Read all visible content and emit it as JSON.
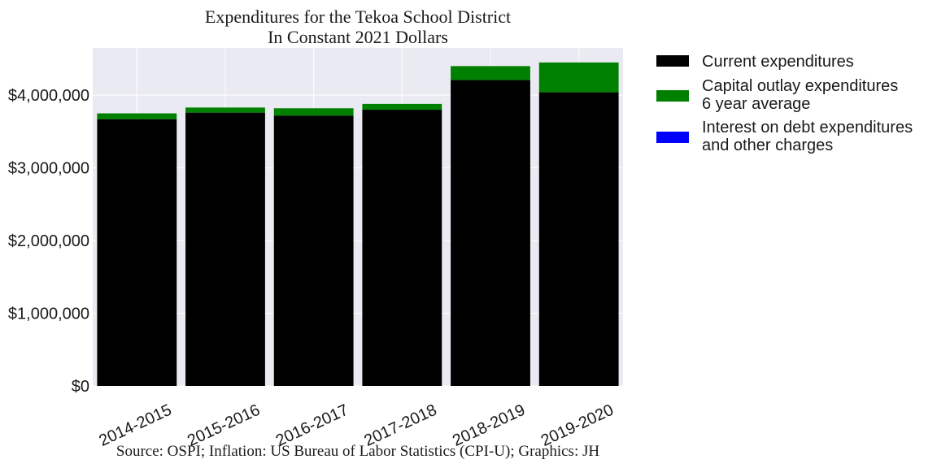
{
  "chart_data": {
    "type": "bar",
    "stacked": true,
    "title": "Expenditures for the Tekoa School District",
    "subtitle": "In Constant 2021 Dollars",
    "xlabel": "",
    "ylabel": "",
    "categories": [
      "2014-2015",
      "2015-2016",
      "2016-2017",
      "2017-2018",
      "2018-2019",
      "2019-2020"
    ],
    "series": [
      {
        "name": "Current expenditures",
        "color": "#000000",
        "values": [
          3670000,
          3760000,
          3720000,
          3800000,
          4210000,
          4040000
        ]
      },
      {
        "name": "Capital outlay expenditures 6 year average",
        "color": "#008000",
        "values": [
          80000,
          70000,
          100000,
          80000,
          190000,
          410000
        ]
      },
      {
        "name": "Interest on debt expenditures and other charges",
        "color": "#0000ff",
        "values": [
          0,
          0,
          0,
          0,
          0,
          0
        ]
      }
    ],
    "ylim": [
      0,
      4650000
    ],
    "yticks": [
      0,
      1000000,
      2000000,
      3000000,
      4000000
    ],
    "ytick_labels": [
      "$0",
      "$1,000,000",
      "$2,000,000",
      "$3,000,000",
      "$4,000,000"
    ],
    "legend": [
      {
        "lines": [
          "Current expenditures"
        ],
        "color": "#000000"
      },
      {
        "lines": [
          "Capital outlay expenditures",
          "6 year average"
        ],
        "color": "#008000"
      },
      {
        "lines": [
          "Interest on debt expenditures",
          "and other charges"
        ],
        "color": "#0000ff"
      }
    ],
    "legend_position": "outside-right",
    "grid": true,
    "source_note": "Source: OSPI; Inflation: US Bureau of Labor Statistics (CPI-U); Graphics: JH"
  }
}
